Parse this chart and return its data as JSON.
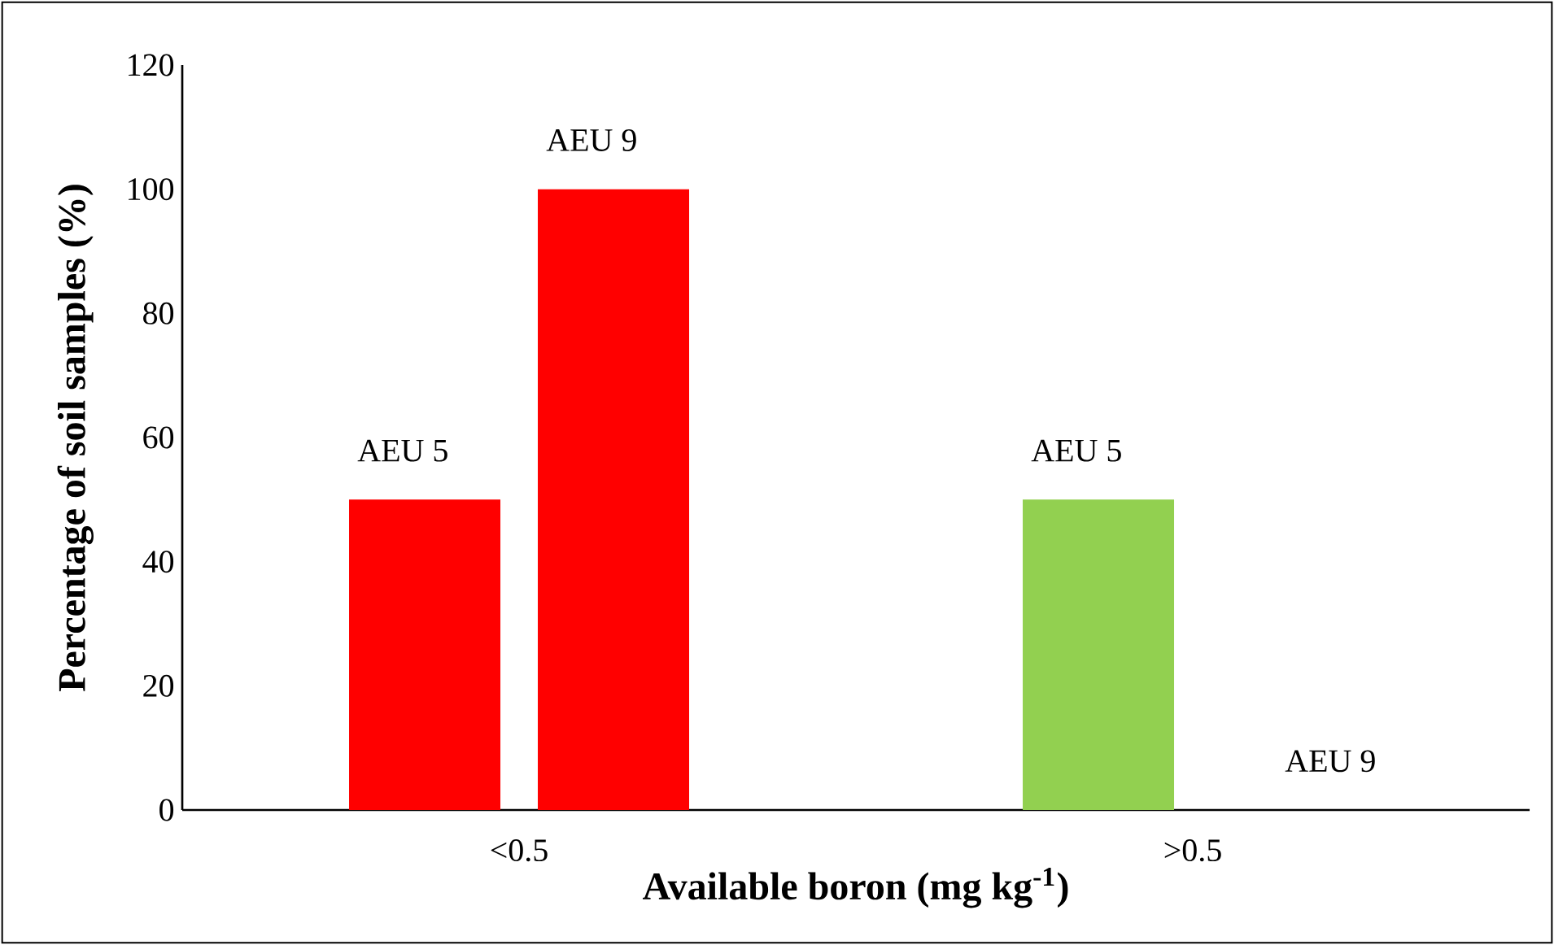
{
  "chart_data": {
    "type": "bar",
    "xlabel": "Available boron (mg kg$^{-1}$)",
    "ylabel": "Percentage of soil samples (%)",
    "categories": [
      "<0.5",
      ">0.5"
    ],
    "series": [
      {
        "name": "AEU 5",
        "colors": [
          "#ff0000",
          "#92d050"
        ],
        "values": [
          50,
          50
        ]
      },
      {
        "name": "AEU 9",
        "colors": [
          "#ff0000",
          "#92d050"
        ],
        "values": [
          100,
          0
        ]
      }
    ],
    "ylim": [
      0,
      120
    ],
    "yticks": [
      0,
      20,
      40,
      60,
      80,
      100,
      120
    ]
  }
}
